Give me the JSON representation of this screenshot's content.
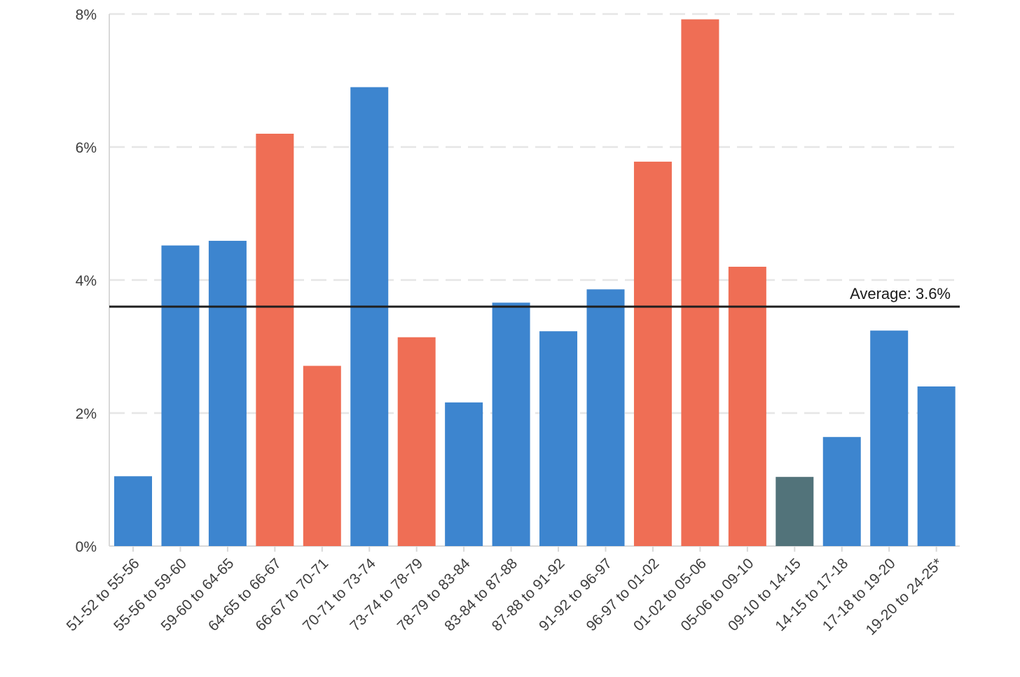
{
  "chart_data": {
    "type": "bar",
    "title": "",
    "xlabel": "",
    "ylabel": "",
    "ylim": [
      0,
      8
    ],
    "y_ticks": [
      {
        "value": 0,
        "label": "0%"
      },
      {
        "value": 2,
        "label": "2%"
      },
      {
        "value": 4,
        "label": "4%"
      },
      {
        "value": 6,
        "label": "6%"
      },
      {
        "value": 8,
        "label": "8%"
      }
    ],
    "grid": "horizontal dashed",
    "legend": "none",
    "categories": [
      "51-52 to 55-56",
      "55-56 to 59-60",
      "59-60 to 64-65",
      "64-65 to 66-67",
      "66-67 to 70-71",
      "70-71 to 73-74",
      "73-74 to 78-79",
      "78-79 to 83-84",
      "83-84 to 87-88",
      "87-88 to 91-92",
      "91-92 to 96-97",
      "96-97 to 01-02",
      "01-02 to 05-06",
      "05-06 to 09-10",
      "09-10 to 14-15",
      "14-15 to 17-18",
      "17-18 to 19-20",
      "19-20 to 24-25*"
    ],
    "values": [
      1.05,
      4.52,
      4.59,
      6.2,
      2.71,
      6.9,
      3.14,
      2.16,
      3.66,
      3.23,
      3.86,
      5.78,
      7.92,
      4.2,
      1.04,
      1.64,
      3.24,
      2.4
    ],
    "bar_colors": [
      "#3d85cf",
      "#3d85cf",
      "#3d85cf",
      "#ef6e55",
      "#ef6e55",
      "#3d85cf",
      "#ef6e55",
      "#3d85cf",
      "#3d85cf",
      "#3d85cf",
      "#3d85cf",
      "#ef6e55",
      "#ef6e55",
      "#ef6e55",
      "#52737a",
      "#3d85cf",
      "#3d85cf",
      "#3d85cf"
    ],
    "reference_line": {
      "value": 3.6,
      "label": "Average: 3.6%",
      "color": "#1f1f1f"
    },
    "colors": {
      "blue": "#3d85cf",
      "red": "#ef6e55",
      "slate": "#52737a",
      "grid": "#e6e6e6",
      "axis": "#d9d9d9"
    }
  }
}
